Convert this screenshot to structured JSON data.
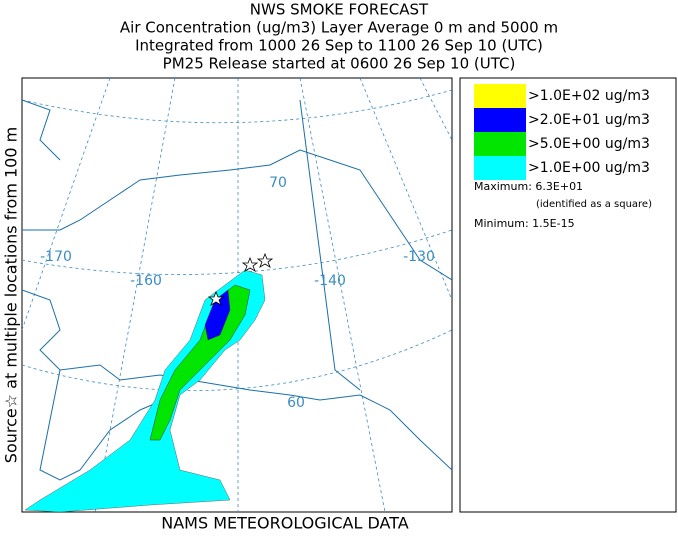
{
  "header": {
    "lines": [
      "NWS SMOKE FORECAST",
      "Air Concentration (ug/m3) Layer Average    0 m and  5000 m",
      "Integrated from 1000 26 Sep to 1100 26 Sep 10 (UTC)",
      "PM25 Release started at 0600 26 Sep 10 (UTC)"
    ]
  },
  "side_label": "Source☆   at multiple locations   from   100 m",
  "footer": "NAMS METEOROLOGICAL DATA",
  "legend": {
    "items": [
      {
        "label": ">1.0E+02 ug/m3",
        "color": "#ffff00"
      },
      {
        "label": ">2.0E+01 ug/m3",
        "color": "#0000ff"
      },
      {
        "label": ">5.0E+00 ug/m3",
        "color": "#00e600"
      },
      {
        "label": ">1.0E+00 ug/m3",
        "color": "#00ffff"
      }
    ],
    "maximum": "Maximum: 6.3E+01",
    "maximum_note": "(identified as a square)",
    "minimum": "Minimum: 1.5E-15"
  },
  "map": {
    "graticule_labels": [
      "-170",
      "-160",
      "-140",
      "-130",
      "70",
      "60"
    ]
  }
}
